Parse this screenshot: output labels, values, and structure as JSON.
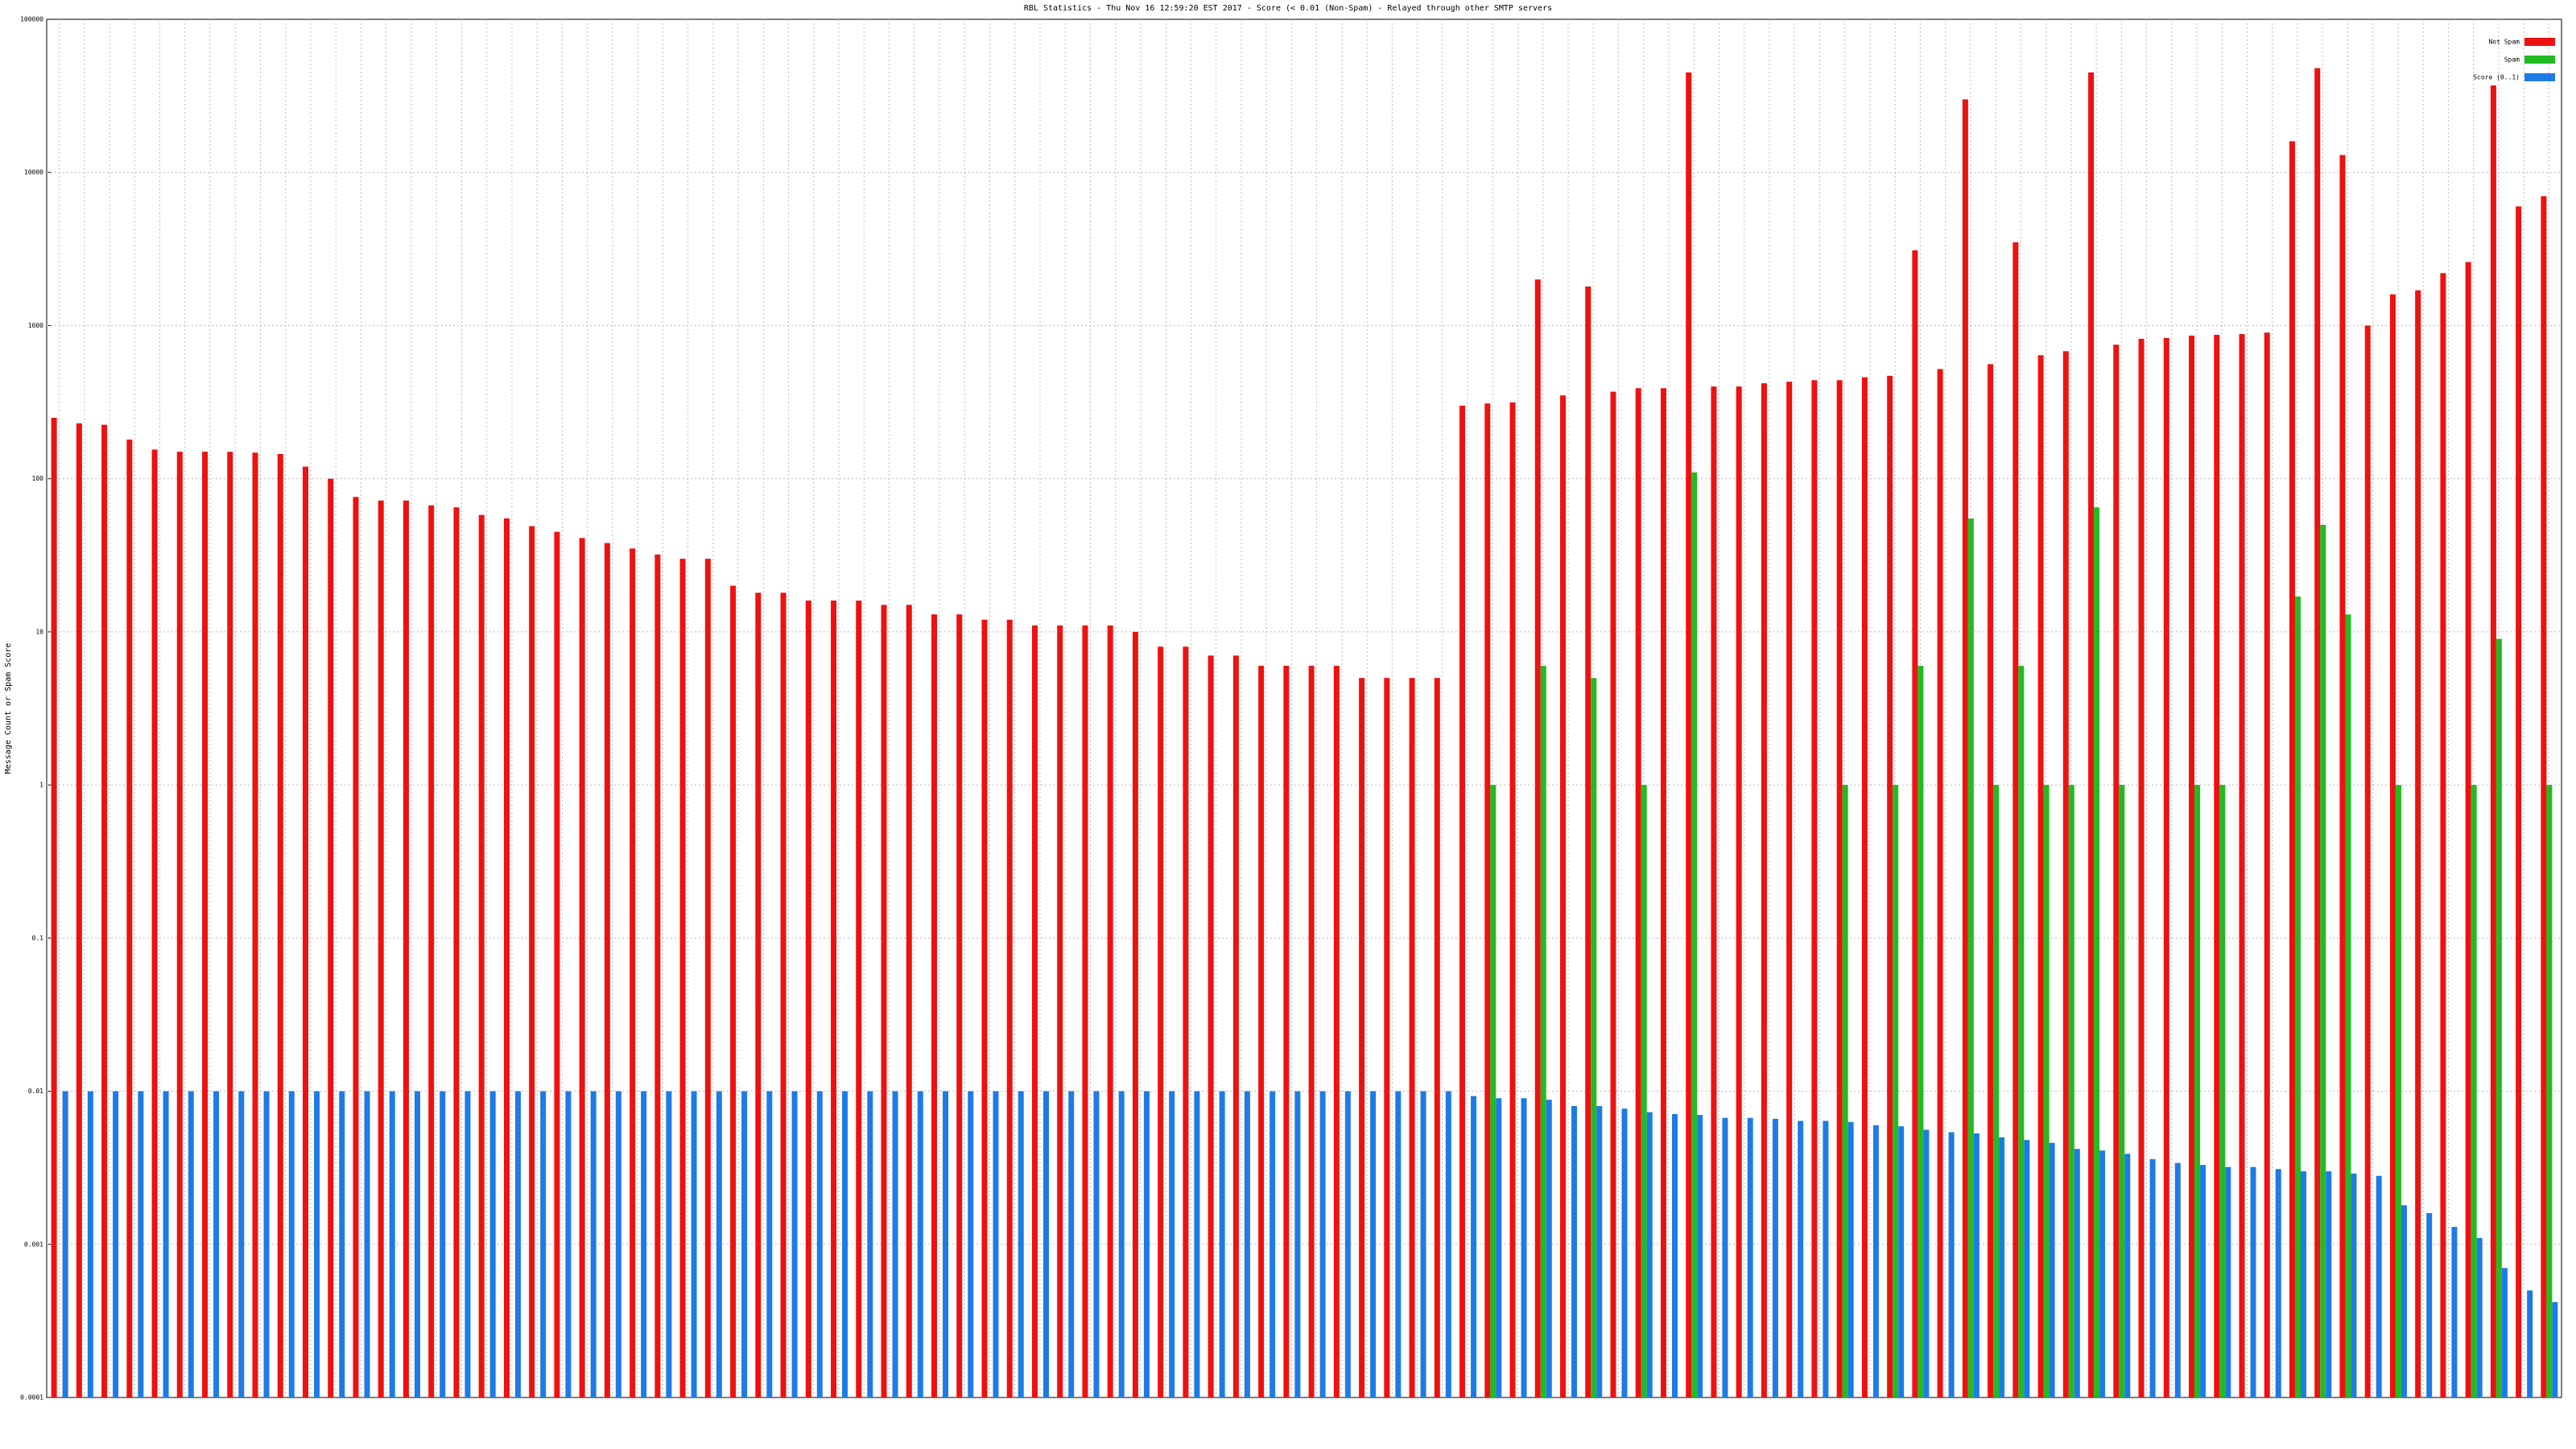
{
  "chart_data": {
    "type": "bar",
    "title": "RBL Statistics - Thu Nov 16 12:59:20 EST 2017 - Score (< 0.01 (Non-Spam) - Relayed through other SMTP servers",
    "y_label": "Message Count or Spam Score",
    "log_scale": true,
    "grid": true,
    "legend": "top-right",
    "ylim": [
      0.0001,
      100000
    ],
    "yticks": [
      0.0001,
      0.001,
      0.01,
      0.1,
      1,
      10,
      100,
      1000,
      10000,
      100000
    ],
    "categories": [
      null,
      null,
      null,
      null,
      null,
      null,
      null,
      null,
      null,
      null,
      null,
      null,
      null,
      null,
      null,
      null,
      null,
      null,
      null,
      null,
      null,
      null,
      null,
      null,
      null,
      null,
      null,
      null,
      null,
      null,
      null,
      null,
      null,
      null,
      null,
      null,
      null,
      null,
      null,
      null,
      null,
      null,
      null,
      null,
      null,
      null,
      null,
      null,
      null,
      null,
      null,
      null,
      null,
      null,
      null,
      null,
      null,
      null,
      null,
      null,
      null,
      null,
      null,
      null,
      null,
      null,
      null,
      null,
      null,
      null,
      null,
      null,
      null,
      null,
      null,
      null,
      null,
      null,
      null,
      null,
      null,
      null,
      null,
      null,
      null,
      null,
      null,
      null,
      null,
      null,
      null,
      null,
      null,
      null,
      null,
      null,
      null,
      null,
      null,
      null
    ],
    "series": [
      {
        "name": "Not Spam",
        "color": "#ee1111",
        "values": [
          250,
          230,
          225,
          180,
          155,
          150,
          150,
          150,
          148,
          145,
          120,
          100,
          76,
          72,
          72,
          67,
          65,
          58,
          55,
          49,
          45,
          41,
          38,
          35,
          32,
          30,
          30,
          20,
          18,
          18,
          16,
          16,
          16,
          15,
          15,
          13,
          13,
          12,
          12,
          11,
          11,
          11,
          11,
          10,
          8,
          8,
          7,
          7,
          6,
          6,
          6,
          6,
          5,
          5,
          5,
          5,
          300,
          310,
          315,
          2000,
          350,
          1800,
          370,
          390,
          390,
          45000,
          400,
          400,
          420,
          430,
          440,
          440,
          460,
          470,
          3100,
          520,
          30000,
          560,
          3500,
          640,
          680,
          45000,
          750,
          820,
          830,
          860,
          870,
          880,
          900,
          16000,
          48000,
          13000,
          1000,
          1600,
          1700,
          2200,
          2600,
          37000,
          6000,
          7000
        ]
      },
      {
        "name": "Spam",
        "color": "#22bb22",
        "values": [
          null,
          null,
          null,
          null,
          null,
          null,
          null,
          null,
          null,
          null,
          null,
          null,
          null,
          null,
          null,
          null,
          null,
          null,
          null,
          null,
          null,
          null,
          null,
          null,
          null,
          null,
          null,
          null,
          null,
          null,
          null,
          null,
          null,
          null,
          null,
          null,
          null,
          null,
          null,
          null,
          null,
          null,
          null,
          null,
          null,
          null,
          null,
          null,
          null,
          null,
          null,
          null,
          null,
          null,
          null,
          null,
          null,
          1,
          null,
          6,
          null,
          5,
          null,
          1,
          null,
          110,
          null,
          null,
          null,
          null,
          null,
          1,
          null,
          1,
          6,
          null,
          55,
          1,
          6,
          1,
          1,
          65,
          1,
          null,
          null,
          1,
          1,
          null,
          null,
          17,
          50,
          13,
          null,
          1,
          null,
          null,
          1,
          9,
          null,
          1
        ]
      },
      {
        "name": "Score (0..1)",
        "color": "#1e7be6",
        "values": [
          0.01,
          0.01,
          0.01,
          0.01,
          0.01,
          0.01,
          0.01,
          0.01,
          0.01,
          0.01,
          0.01,
          0.01,
          0.01,
          0.01,
          0.01,
          0.01,
          0.01,
          0.01,
          0.01,
          0.01,
          0.01,
          0.01,
          0.01,
          0.01,
          0.01,
          0.01,
          0.01,
          0.01,
          0.01,
          0.01,
          0.01,
          0.01,
          0.01,
          0.01,
          0.01,
          0.01,
          0.01,
          0.01,
          0.01,
          0.01,
          0.01,
          0.01,
          0.01,
          0.01,
          0.01,
          0.01,
          0.01,
          0.01,
          0.01,
          0.01,
          0.01,
          0.01,
          0.01,
          0.01,
          0.01,
          0.01,
          0.0093,
          0.009,
          0.009,
          0.0088,
          0.008,
          0.008,
          0.0077,
          0.0073,
          0.0071,
          0.007,
          0.0067,
          0.0067,
          0.0066,
          0.0064,
          0.0064,
          0.0063,
          0.006,
          0.0059,
          0.0056,
          0.0054,
          0.0053,
          0.005,
          0.0048,
          0.0046,
          0.0042,
          0.0041,
          0.0039,
          0.0036,
          0.0034,
          0.0033,
          0.0032,
          0.0032,
          0.0031,
          0.003,
          0.003,
          0.0029,
          0.0028,
          0.0018,
          0.0016,
          0.0013,
          0.0011,
          0.0007,
          0.0005,
          0.00042
        ]
      }
    ]
  }
}
